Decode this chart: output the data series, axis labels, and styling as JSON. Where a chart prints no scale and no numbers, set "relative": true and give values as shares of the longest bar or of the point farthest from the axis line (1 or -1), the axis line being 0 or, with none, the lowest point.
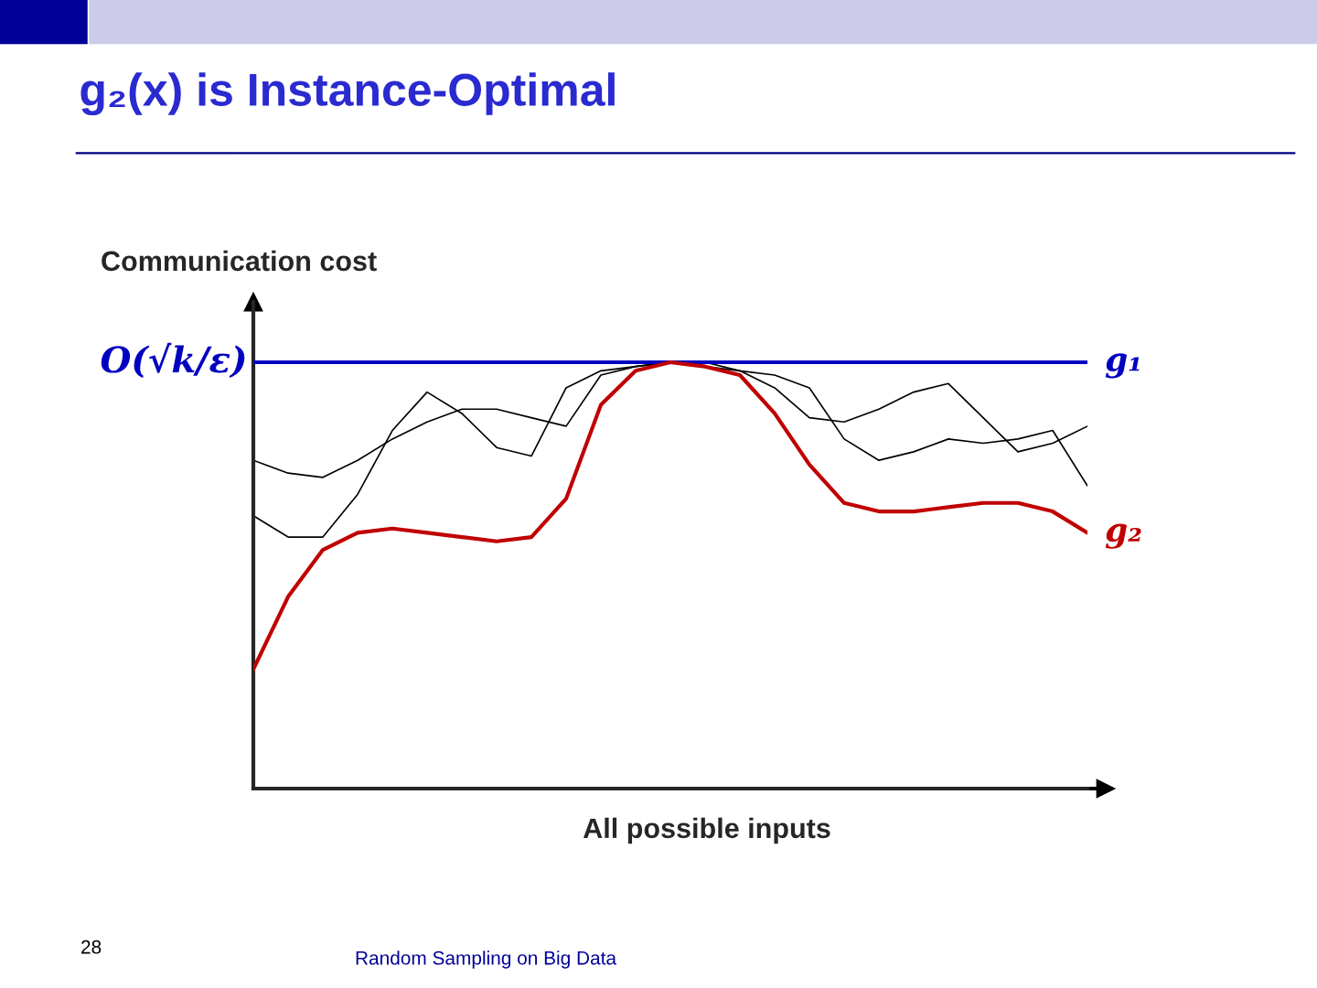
{
  "chart_data": {
    "type": "line",
    "title": "g₂(x) is Instance-Optimal",
    "xlabel": "All possible inputs",
    "ylabel": "Communication cost",
    "relative": true,
    "legend": false,
    "grid": false,
    "marker": "none",
    "line_style": "solid",
    "categories": [
      null,
      null,
      null,
      null,
      null,
      null,
      null,
      null,
      null,
      null,
      null,
      null,
      null,
      null,
      null,
      null,
      null,
      null,
      null,
      null,
      null,
      null,
      null,
      null,
      null
    ],
    "series": [
      {
        "name": "g₁",
        "color": "#0000c0",
        "values": [
          1.0,
          1.0,
          1.0,
          1.0,
          1.0,
          1.0,
          1.0,
          1.0,
          1.0,
          1.0,
          1.0,
          1.0,
          1.0,
          1.0,
          1.0,
          1.0,
          1.0,
          1.0,
          1.0,
          1.0,
          1.0,
          1.0,
          1.0,
          1.0,
          1.0
        ]
      },
      {
        "name": "g₂",
        "color": "#c00000",
        "values": [
          0.28,
          0.45,
          0.56,
          0.6,
          0.61,
          0.6,
          0.59,
          0.58,
          0.59,
          0.68,
          0.9,
          0.98,
          1.0,
          0.99,
          0.97,
          0.88,
          0.76,
          0.67,
          0.65,
          0.65,
          0.66,
          0.67,
          0.67,
          0.65,
          0.6
        ]
      },
      {
        "color": "#000000",
        "values": [
          0.77,
          0.74,
          0.73,
          0.77,
          0.82,
          0.86,
          0.89,
          0.89,
          0.87,
          0.85,
          0.97,
          0.99,
          1.0,
          1.0,
          0.98,
          0.97,
          0.94,
          0.82,
          0.77,
          0.79,
          0.82,
          0.81,
          0.82,
          0.84,
          0.71
        ]
      },
      {
        "color": "#000000",
        "values": [
          0.64,
          0.59,
          0.59,
          0.69,
          0.84,
          0.93,
          0.88,
          0.8,
          0.78,
          0.94,
          0.98,
          0.99,
          1.0,
          0.99,
          0.98,
          0.94,
          0.87,
          0.86,
          0.89,
          0.93,
          0.95,
          0.87,
          0.79,
          0.81,
          0.85
        ]
      }
    ],
    "annotations": [
      "O(√k/ε)",
      "28",
      "Random Sampling on Big Data"
    ]
  }
}
